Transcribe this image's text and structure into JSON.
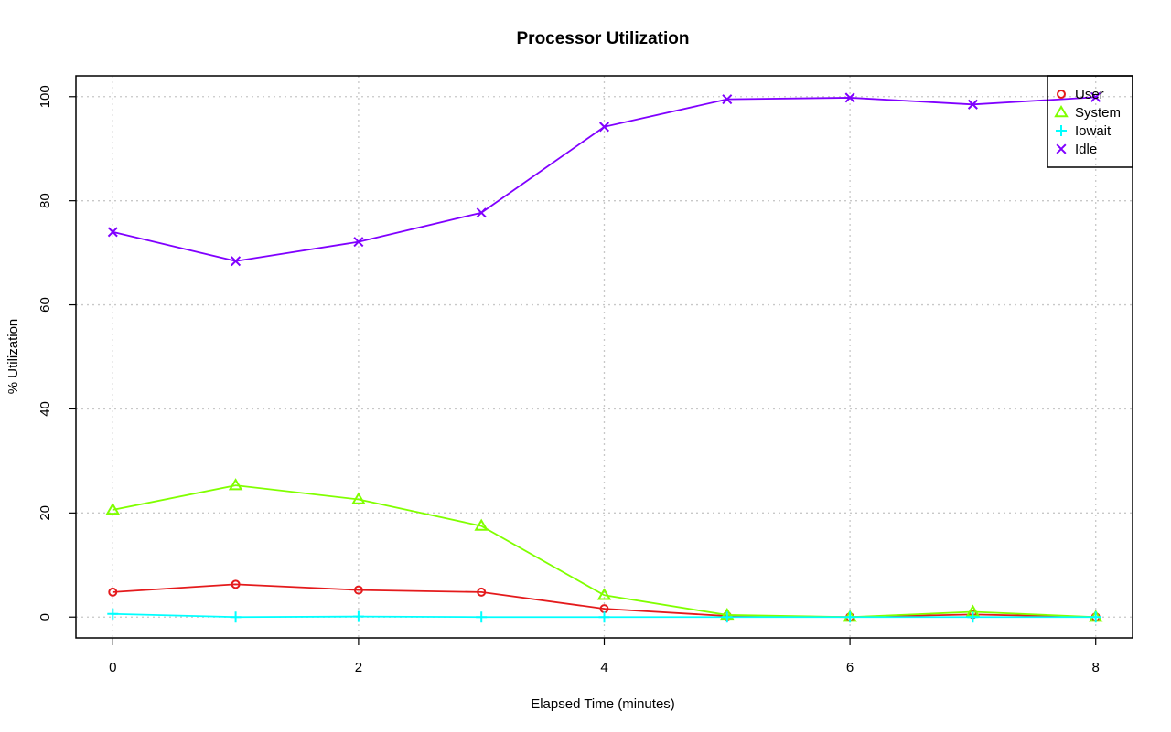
{
  "chart_data": {
    "type": "line",
    "title": "Processor Utilization",
    "xlabel": "Elapsed Time (minutes)",
    "ylabel": "% Utilization",
    "xlim": [
      -0.3,
      8.3
    ],
    "ylim": [
      -4,
      104
    ],
    "x_ticks": [
      0,
      2,
      4,
      6,
      8
    ],
    "y_ticks": [
      0,
      20,
      40,
      60,
      80,
      100
    ],
    "grid": true,
    "legend_position": "top-right",
    "x": [
      0,
      1,
      2,
      3,
      4,
      5,
      6,
      7,
      8
    ],
    "series": [
      {
        "name": "User",
        "color": "#e41a1c",
        "marker": "circle",
        "values": [
          4.8,
          6.3,
          5.2,
          4.8,
          1.6,
          0.2,
          0.0,
          0.5,
          0.0
        ]
      },
      {
        "name": "System",
        "color": "#80ff00",
        "marker": "triangle",
        "values": [
          20.6,
          25.3,
          22.6,
          17.5,
          4.2,
          0.4,
          0.0,
          1.0,
          0.0
        ]
      },
      {
        "name": "Iowait",
        "color": "#00ffff",
        "marker": "plus",
        "values": [
          0.6,
          0.0,
          0.1,
          0.0,
          0.0,
          0.0,
          0.0,
          0.0,
          0.0
        ]
      },
      {
        "name": "Idle",
        "color": "#8000ff",
        "marker": "cross",
        "values": [
          74.0,
          68.4,
          72.1,
          77.7,
          94.2,
          99.5,
          99.8,
          98.5,
          99.9
        ]
      }
    ]
  }
}
